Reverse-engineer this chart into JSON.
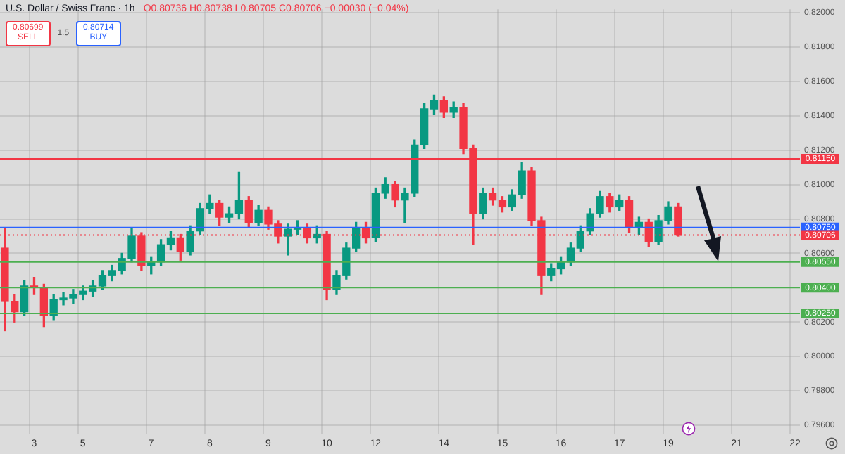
{
  "chart_data": {
    "type": "candlestick",
    "title": "U.S. Dollar / Swiss Franc · 1h",
    "annotations": [
      "O0.80736 H0.80738 L0.80705 C0.80706 −0.00030 (−0.04%)",
      "0.80699",
      "SELL",
      "1.5",
      "0.80714",
      "BUY"
    ],
    "categories": [
      null,
      null,
      null,
      "3",
      null,
      null,
      null,
      null,
      "5",
      null,
      null,
      null,
      null,
      null,
      null,
      "7",
      null,
      null,
      null,
      null,
      null,
      "8",
      null,
      null,
      null,
      null,
      null,
      "9",
      null,
      null,
      null,
      null,
      null,
      "10",
      null,
      null,
      null,
      null,
      "12",
      null,
      null,
      null,
      null,
      null,
      null,
      "14",
      null,
      null,
      null,
      null,
      null,
      "15",
      null,
      null,
      null,
      null,
      null,
      "16",
      null,
      null,
      null,
      null,
      null,
      "17",
      null,
      null,
      null,
      null,
      "19",
      null,
      null,
      null,
      null,
      null,
      null,
      "21",
      null,
      null,
      null,
      null,
      null,
      "22"
    ],
    "ohlc": [
      [
        0.8063,
        0.8075,
        0.8015,
        0.8032
      ],
      [
        0.8032,
        0.8036,
        0.802,
        0.8026
      ],
      [
        0.8026,
        0.8044,
        0.8024,
        0.8041
      ],
      [
        0.8041,
        0.8046,
        0.8036,
        0.804
      ],
      [
        0.804,
        0.8042,
        0.8017,
        0.8024
      ],
      [
        0.8024,
        0.8036,
        0.8021,
        0.8033
      ],
      [
        0.8033,
        0.8037,
        0.803,
        0.8034
      ],
      [
        0.8034,
        0.8039,
        0.8031,
        0.8036
      ],
      [
        0.8036,
        0.8041,
        0.8033,
        0.8038
      ],
      [
        0.8038,
        0.8044,
        0.8035,
        0.8041
      ],
      [
        0.8041,
        0.805,
        0.8039,
        0.8047
      ],
      [
        0.8047,
        0.8053,
        0.8044,
        0.805
      ],
      [
        0.805,
        0.806,
        0.8048,
        0.8057
      ],
      [
        0.8057,
        0.8075,
        0.8055,
        0.807
      ],
      [
        0.807,
        0.8072,
        0.805,
        0.8053
      ],
      [
        0.8053,
        0.8058,
        0.8048,
        0.8055
      ],
      [
        0.8055,
        0.8068,
        0.8053,
        0.8065
      ],
      [
        0.8065,
        0.8073,
        0.8062,
        0.8069
      ],
      [
        0.8069,
        0.8071,
        0.8056,
        0.8061
      ],
      [
        0.8061,
        0.8076,
        0.8059,
        0.8073
      ],
      [
        0.8073,
        0.8089,
        0.8071,
        0.8086
      ],
      [
        0.8086,
        0.8094,
        0.8083,
        0.8089
      ],
      [
        0.8089,
        0.8091,
        0.8076,
        0.8081
      ],
      [
        0.8081,
        0.8087,
        0.8078,
        0.8083
      ],
      [
        0.8083,
        0.8107,
        0.808,
        0.8091
      ],
      [
        0.8091,
        0.8093,
        0.8075,
        0.8078
      ],
      [
        0.8078,
        0.8088,
        0.8076,
        0.8085
      ],
      [
        0.8085,
        0.8087,
        0.8074,
        0.8077
      ],
      [
        0.8077,
        0.8079,
        0.8066,
        0.807
      ],
      [
        0.807,
        0.8077,
        0.8059,
        0.8074
      ],
      [
        0.8074,
        0.8079,
        0.8071,
        0.8075
      ],
      [
        0.8075,
        0.8077,
        0.8066,
        0.8069
      ],
      [
        0.8069,
        0.8076,
        0.8066,
        0.8071
      ],
      [
        0.8071,
        0.8073,
        0.8033,
        0.8039
      ],
      [
        0.8039,
        0.805,
        0.8036,
        0.8047
      ],
      [
        0.8047,
        0.8066,
        0.8045,
        0.8063
      ],
      [
        0.8063,
        0.8078,
        0.8061,
        0.8075
      ],
      [
        0.8075,
        0.8078,
        0.8066,
        0.8069
      ],
      [
        0.8069,
        0.8098,
        0.8067,
        0.8095
      ],
      [
        0.8095,
        0.8104,
        0.8092,
        0.81
      ],
      [
        0.81,
        0.8102,
        0.8087,
        0.8091
      ],
      [
        0.8091,
        0.8098,
        0.8078,
        0.8095
      ],
      [
        0.8095,
        0.8126,
        0.8093,
        0.8123
      ],
      [
        0.8123,
        0.8147,
        0.8121,
        0.8144
      ],
      [
        0.8144,
        0.8152,
        0.8141,
        0.8149
      ],
      [
        0.8149,
        0.8151,
        0.8139,
        0.8142
      ],
      [
        0.8142,
        0.8148,
        0.8139,
        0.8145
      ],
      [
        0.8145,
        0.8147,
        0.8118,
        0.8121
      ],
      [
        0.8121,
        0.8123,
        0.8065,
        0.8083
      ],
      [
        0.8083,
        0.8098,
        0.808,
        0.8095
      ],
      [
        0.8095,
        0.8098,
        0.8088,
        0.8091
      ],
      [
        0.8091,
        0.8093,
        0.8084,
        0.8087
      ],
      [
        0.8087,
        0.8097,
        0.8085,
        0.8094
      ],
      [
        0.8094,
        0.8113,
        0.8092,
        0.8108
      ],
      [
        0.8108,
        0.811,
        0.8076,
        0.8079
      ],
      [
        0.8079,
        0.8081,
        0.8036,
        0.8047
      ],
      [
        0.8047,
        0.8054,
        0.8044,
        0.8051
      ],
      [
        0.8051,
        0.8058,
        0.8048,
        0.8055
      ],
      [
        0.8055,
        0.8066,
        0.8053,
        0.8063
      ],
      [
        0.8063,
        0.8076,
        0.8061,
        0.8073
      ],
      [
        0.8073,
        0.8086,
        0.8071,
        0.8083
      ],
      [
        0.8083,
        0.8096,
        0.8081,
        0.8093
      ],
      [
        0.8093,
        0.8095,
        0.8084,
        0.8087
      ],
      [
        0.8087,
        0.8094,
        0.8085,
        0.8091
      ],
      [
        0.8091,
        0.8093,
        0.8072,
        0.8075
      ],
      [
        0.8075,
        0.8081,
        0.8071,
        0.8078
      ],
      [
        0.8078,
        0.808,
        0.8064,
        0.8067
      ],
      [
        0.8067,
        0.8082,
        0.8065,
        0.8079
      ],
      [
        0.8079,
        0.809,
        0.8077,
        0.8087
      ],
      [
        0.8087,
        0.8089,
        0.807,
        0.80706
      ],
      null,
      null,
      null,
      null,
      null,
      null,
      null,
      null,
      null,
      null,
      null,
      null
    ],
    "colors": [
      "#f23645",
      "#f23645",
      "#089981",
      "#f23645",
      "#f23645",
      "#089981",
      "#089981",
      "#089981",
      "#089981",
      "#089981",
      "#089981",
      "#089981",
      "#089981",
      "#089981",
      "#f23645",
      "#089981",
      "#089981",
      "#089981",
      "#f23645",
      "#089981",
      "#089981",
      "#089981",
      "#f23645",
      "#089981",
      "#089981",
      "#f23645",
      "#089981",
      "#f23645",
      "#f23645",
      "#089981",
      "#089981",
      "#f23645",
      "#089981",
      "#f23645",
      "#089981",
      "#089981",
      "#089981",
      "#f23645",
      "#089981",
      "#089981",
      "#f23645",
      "#089981",
      "#089981",
      "#089981",
      "#089981",
      "#f23645",
      "#089981",
      "#f23645",
      "#f23645",
      "#089981",
      "#f23645",
      "#f23645",
      "#089981",
      "#089981",
      "#f23645",
      "#f23645",
      "#089981",
      "#089981",
      "#089981",
      "#089981",
      "#089981",
      "#089981",
      "#f23645",
      "#089981",
      "#f23645",
      "#089981",
      "#f23645",
      "#089981",
      "#089981",
      "#f23645",
      null,
      null,
      null,
      null,
      null,
      null,
      null,
      null,
      null,
      null,
      null,
      null
    ],
    "ylim": [
      0.7955,
      0.8202
    ],
    "yticks": [
      {
        "value": 0.796,
        "label": "0.79600"
      },
      {
        "value": 0.798,
        "label": "0.79800"
      },
      {
        "value": 0.8,
        "label": "0.80000"
      },
      {
        "value": 0.802,
        "label": "0.80200"
      },
      {
        "value": 0.804,
        "label": null
      },
      {
        "value": 0.806,
        "label": "0.80600"
      },
      {
        "value": 0.808,
        "label": "0.80800"
      },
      {
        "value": 0.81,
        "label": "0.81000"
      },
      {
        "value": 0.812,
        "label": "0.81200"
      },
      {
        "value": 0.814,
        "label": "0.81400"
      },
      {
        "value": 0.816,
        "label": "0.81600"
      },
      {
        "value": 0.818,
        "label": "0.81800"
      },
      {
        "value": 0.82,
        "label": "0.82000"
      }
    ],
    "ref_lines": [
      {
        "axis": "y",
        "value": 0.8115,
        "label": "0.81150",
        "color": "#f23645"
      },
      {
        "axis": "y",
        "value": 0.8075,
        "label": "0.80750",
        "color": "#2962ff"
      },
      {
        "axis": "y",
        "value": 0.80706,
        "label": "0.80706",
        "color": "#f23645",
        "line_style": "dotted"
      },
      {
        "axis": "y",
        "value": 0.8055,
        "label": "0.80550",
        "color": "#4caf50"
      },
      {
        "axis": "y",
        "value": 0.804,
        "label": "0.80400",
        "color": "#4caf50"
      },
      {
        "axis": "y",
        "value": 0.8025,
        "label": "0.80250",
        "color": "#4caf50"
      }
    ],
    "grid": true,
    "legend": false
  }
}
